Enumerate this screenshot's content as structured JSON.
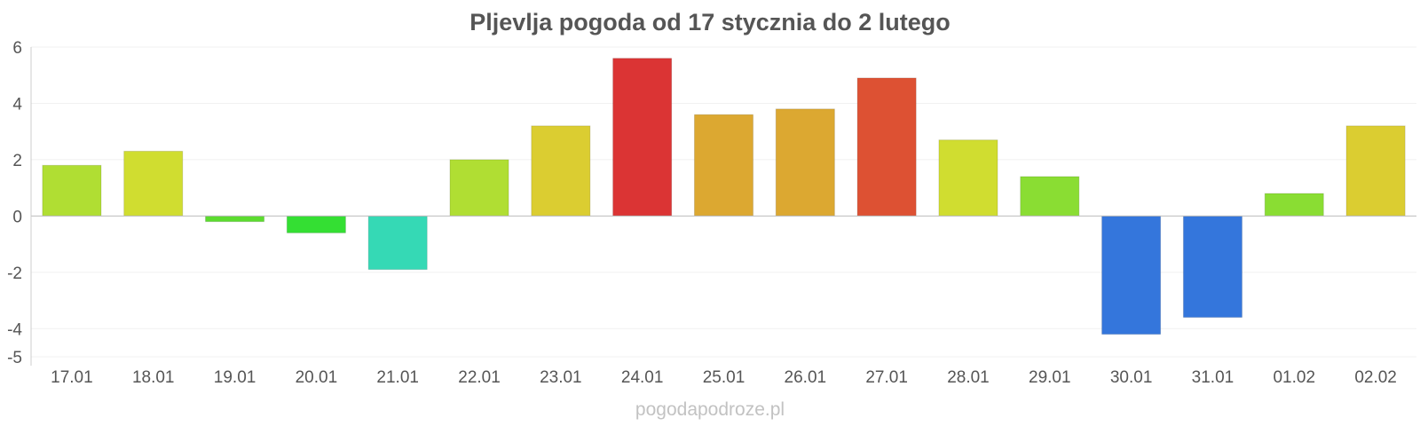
{
  "chart_data": {
    "type": "bar",
    "title": "Pljevlja pogoda od 17 stycznia do 2 lutego",
    "xlabel": "",
    "ylabel": "",
    "ylim": [
      -5,
      6
    ],
    "yticks": [
      6,
      4,
      2,
      0,
      -2,
      -4,
      -5
    ],
    "grid": true,
    "categories": [
      "17.01",
      "18.01",
      "19.01",
      "20.01",
      "21.01",
      "22.01",
      "23.01",
      "24.01",
      "25.01",
      "26.01",
      "27.01",
      "28.01",
      "29.01",
      "30.01",
      "31.01",
      "01.02",
      "02.02"
    ],
    "values": [
      1.8,
      2.3,
      -0.2,
      -0.6,
      -1.9,
      2.0,
      3.2,
      5.6,
      3.6,
      3.8,
      4.9,
      2.7,
      1.4,
      -4.2,
      -3.6,
      0.8,
      3.2
    ],
    "colors": [
      "#b0de33",
      "#d0dd30",
      "#5cdc2f",
      "#34df33",
      "#35d9b5",
      "#b0de33",
      "#dbcd31",
      "#db3434",
      "#dca831",
      "#dca831",
      "#dd5133",
      "#d0dd30",
      "#8add33",
      "#3476dc",
      "#3476dc",
      "#8add33",
      "#dbcd31"
    ]
  },
  "watermark": "pogodapodroze.pl"
}
